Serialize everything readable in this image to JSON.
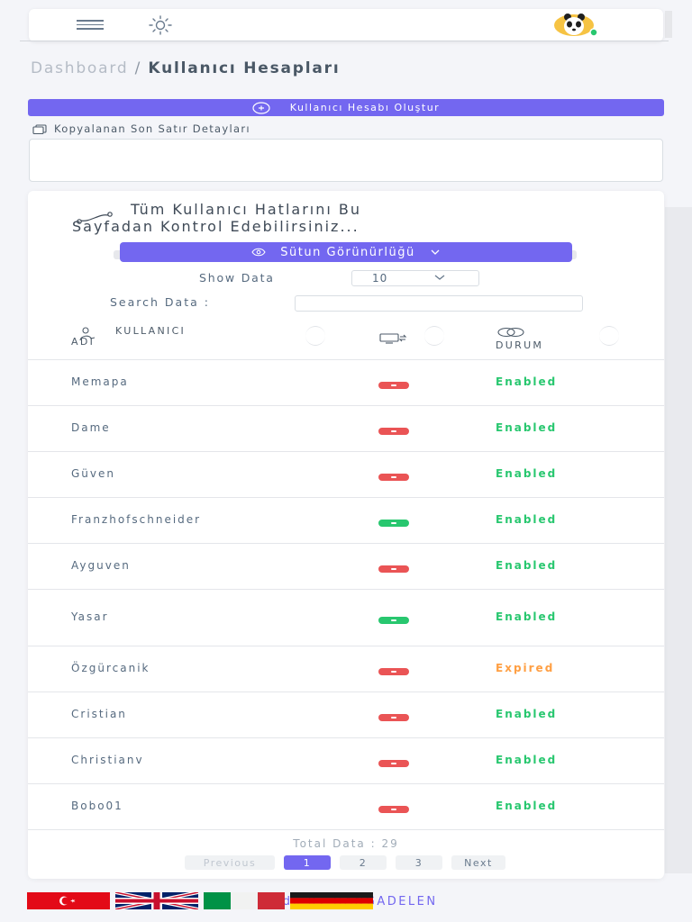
{
  "navbar": {},
  "breadcrumb": {
    "root": "Dashboard",
    "separator": "/",
    "current": "Kullanıcı Hesapları"
  },
  "create_button": {
    "label": "Kullanıcı Hesabı Oluştur"
  },
  "copy_section": {
    "label": "Kopyalanan Son Satır Detayları"
  },
  "card": {
    "title_line1": "Tüm Kullanıcı Hatlarını Bu",
    "title_line2": "Sayfadan Kontrol Edebilirsiniz...",
    "column_visibility_label": "Sütun Görünürlüğü",
    "show_data_label": "Show Data",
    "show_data_value": "10",
    "search_label": "Search Data :",
    "search_value": ""
  },
  "table": {
    "headers": {
      "user_line1": "KULLANICI",
      "user_line2": "ADI",
      "status": "DURUM"
    },
    "rows": [
      {
        "name": "Memapa",
        "line": "red",
        "status": "Enabled"
      },
      {
        "name": "Dame",
        "line": "red",
        "status": "Enabled"
      },
      {
        "name": "Güven",
        "line": "red",
        "status": "Enabled"
      },
      {
        "name": "Franzhofschneider",
        "line": "green",
        "status": "Enabled"
      },
      {
        "name": "Ayguven",
        "line": "red",
        "status": "Enabled"
      },
      {
        "name": "Yasar",
        "line": "green",
        "status": "Enabled"
      },
      {
        "name": "Özgürcanik",
        "line": "red",
        "status": "Expired"
      },
      {
        "name": "Cristian",
        "line": "red",
        "status": "Enabled"
      },
      {
        "name": "Christianv",
        "line": "red",
        "status": "Enabled"
      },
      {
        "name": "Bobo01",
        "line": "red",
        "status": "Enabled"
      }
    ]
  },
  "footer_table": {
    "total": "Total Data : 29",
    "pagination": {
      "previous": "Previous",
      "pages": [
        "1",
        "2",
        "3"
      ],
      "active": "1",
      "next": "Next"
    }
  },
  "footer": {
    "credit": "2024 - Made By HANGADELEN",
    "languages": [
      "turkish-flag",
      "uk-flag",
      "italian-flag",
      "german-flag"
    ]
  },
  "colors": {
    "primary": "#7367f0",
    "enabled": "#28c76f",
    "expired": "#ff9f43",
    "red_dot": "#ea5455",
    "green_dot": "#28c76f"
  }
}
